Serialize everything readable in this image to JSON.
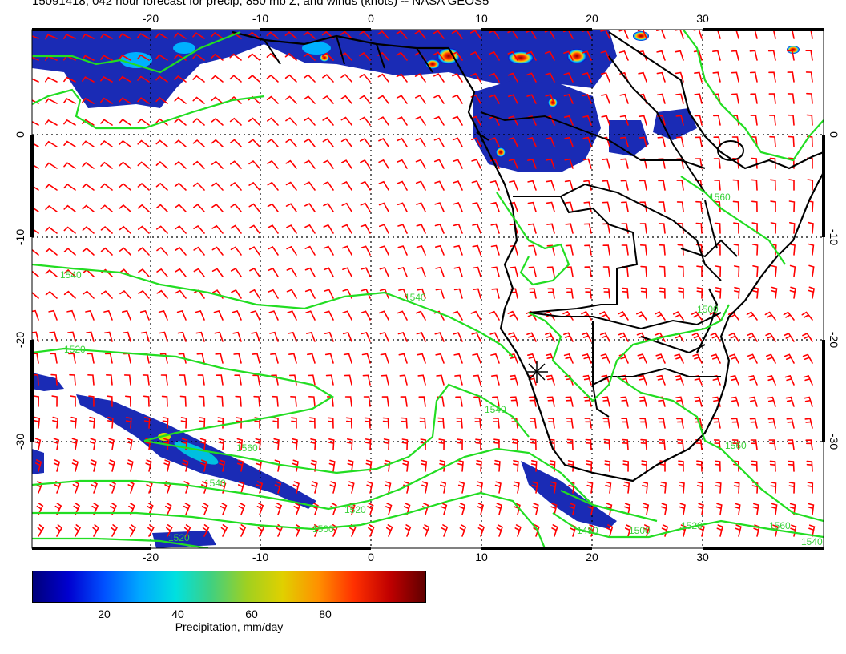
{
  "title": "15091418, 042 hour forecast for precip, 850 mb Z, and winds (knots) -- NASA GEOS5",
  "lon_labels": [
    "-20",
    "-10",
    "0",
    "10",
    "20",
    "30"
  ],
  "lat_labels": [
    "0",
    "-10",
    "-20",
    "-30"
  ],
  "contour_labels": [
    "1540",
    "1540",
    "1520",
    "1540",
    "1560",
    "1540",
    "1520",
    "1500",
    "1520",
    "1560",
    "1500",
    "1480",
    "1500",
    "1520",
    "1560",
    "1560",
    "1540"
  ],
  "colorbar": {
    "ticks": [
      "20",
      "40",
      "60",
      "80"
    ],
    "label": "Precipitation, mm/day",
    "colors": [
      "#00007a",
      "#0000d0",
      "#0050ff",
      "#00a8ff",
      "#00e0e0",
      "#40d080",
      "#a0d020",
      "#e0d000",
      "#ff9000",
      "#ff3000",
      "#c00000",
      "#600000"
    ]
  },
  "colors": {
    "contour": "#22dd22",
    "barb": "#ff0000",
    "coast": "#000000"
  }
}
